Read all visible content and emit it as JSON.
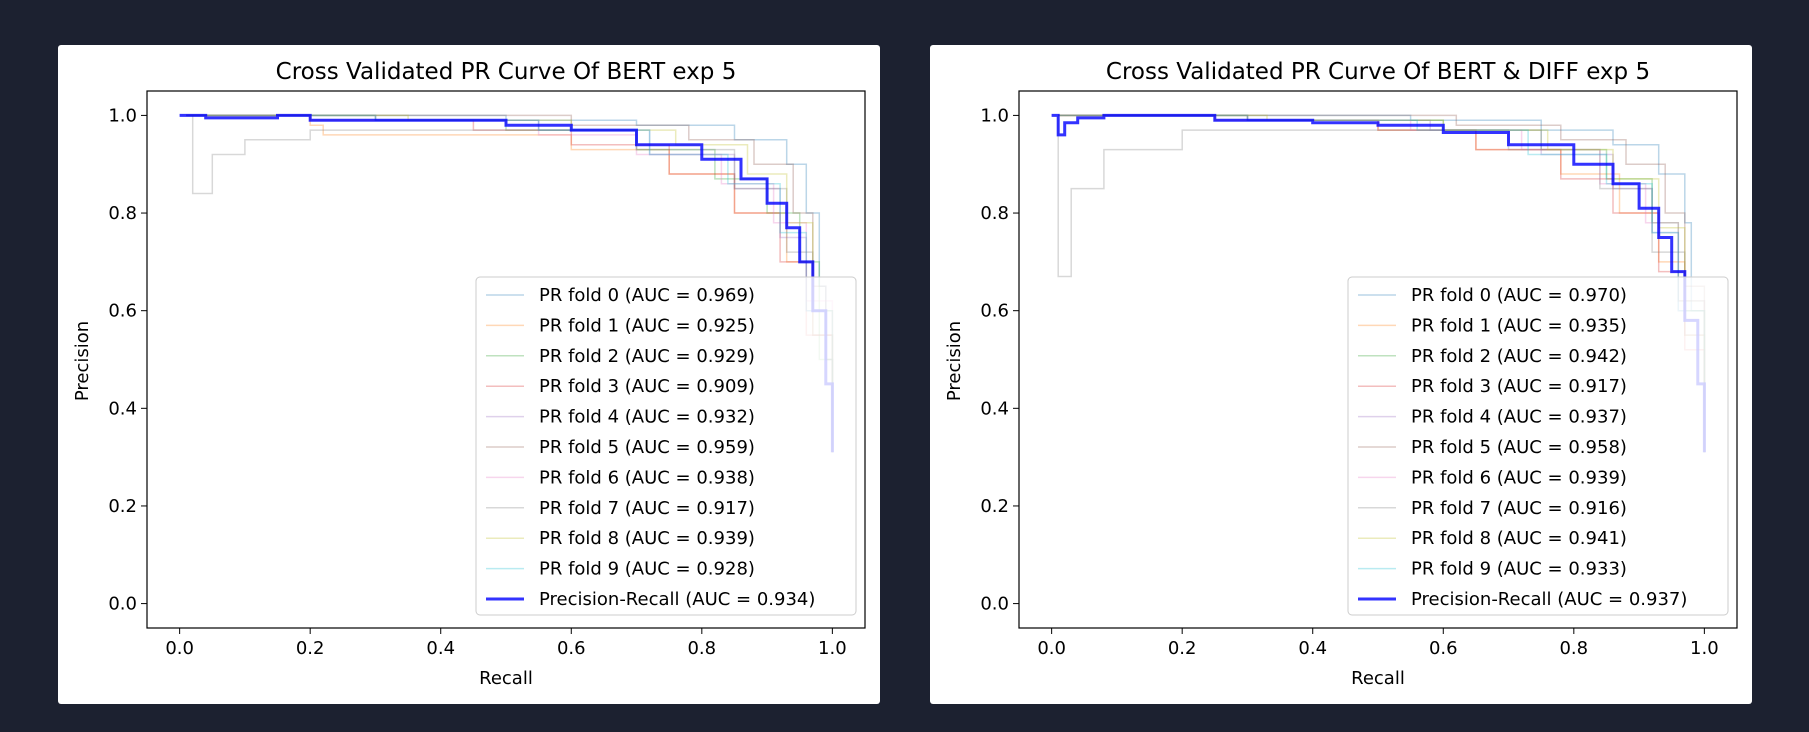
{
  "chart_data": [
    {
      "type": "line",
      "title": "Cross Validated PR Curve Of BERT exp 5",
      "xlabel": "Recall",
      "ylabel": "Precision",
      "xlim": [
        -0.05,
        1.05
      ],
      "ylim": [
        -0.05,
        1.05
      ],
      "xticks": [
        "0.0",
        "0.2",
        "0.4",
        "0.6",
        "0.8",
        "1.0"
      ],
      "yticks": [
        "0.0",
        "0.2",
        "0.4",
        "0.6",
        "0.8",
        "1.0"
      ],
      "legend_position": "lower-right",
      "grid": false,
      "series": [
        {
          "name": "PR fold 0 (AUC = 0.969)",
          "color": "#1f77b4",
          "points": [
            [
              0.01,
              1.0
            ],
            [
              0.2,
              1.0
            ],
            [
              0.5,
              0.99
            ],
            [
              0.7,
              0.98
            ],
            [
              0.85,
              0.95
            ],
            [
              0.93,
              0.9
            ],
            [
              0.96,
              0.8
            ],
            [
              0.98,
              0.65
            ],
            [
              0.99,
              0.5
            ],
            [
              1.0,
              0.31
            ]
          ]
        },
        {
          "name": "PR fold 1 (AUC = 0.925)",
          "color": "#ff7f0e",
          "points": [
            [
              0.01,
              1.0
            ],
            [
              0.2,
              0.98
            ],
            [
              0.22,
              0.96
            ],
            [
              0.5,
              0.96
            ],
            [
              0.6,
              0.93
            ],
            [
              0.75,
              0.88
            ],
            [
              0.85,
              0.8
            ],
            [
              0.93,
              0.7
            ],
            [
              0.97,
              0.55
            ],
            [
              1.0,
              0.31
            ]
          ]
        },
        {
          "name": "PR fold 2 (AUC = 0.929)",
          "color": "#2ca02c",
          "points": [
            [
              0.01,
              1.0
            ],
            [
              0.3,
              0.99
            ],
            [
              0.5,
              0.97
            ],
            [
              0.7,
              0.93
            ],
            [
              0.82,
              0.87
            ],
            [
              0.9,
              0.8
            ],
            [
              0.95,
              0.7
            ],
            [
              0.98,
              0.5
            ],
            [
              1.0,
              0.31
            ]
          ]
        },
        {
          "name": "PR fold 3 (AUC = 0.909)",
          "color": "#d62728",
          "points": [
            [
              0.01,
              1.0
            ],
            [
              0.2,
              0.99
            ],
            [
              0.45,
              0.97
            ],
            [
              0.6,
              0.94
            ],
            [
              0.75,
              0.88
            ],
            [
              0.85,
              0.8
            ],
            [
              0.92,
              0.7
            ],
            [
              0.96,
              0.55
            ],
            [
              1.0,
              0.31
            ]
          ]
        },
        {
          "name": "PR fold 4 (AUC = 0.932)",
          "color": "#9467bd",
          "points": [
            [
              0.01,
              1.0
            ],
            [
              0.3,
              0.99
            ],
            [
              0.55,
              0.97
            ],
            [
              0.72,
              0.92
            ],
            [
              0.85,
              0.85
            ],
            [
              0.92,
              0.75
            ],
            [
              0.96,
              0.6
            ],
            [
              1.0,
              0.31
            ]
          ]
        },
        {
          "name": "PR fold 5 (AUC = 0.959)",
          "color": "#8c564b",
          "points": [
            [
              0.01,
              1.0
            ],
            [
              0.3,
              1.0
            ],
            [
              0.6,
              0.98
            ],
            [
              0.78,
              0.95
            ],
            [
              0.88,
              0.9
            ],
            [
              0.94,
              0.8
            ],
            [
              0.97,
              0.65
            ],
            [
              0.99,
              0.5
            ],
            [
              1.0,
              0.31
            ]
          ]
        },
        {
          "name": "PR fold 6 (AUC = 0.938)",
          "color": "#e377c2",
          "points": [
            [
              0.01,
              1.0
            ],
            [
              0.3,
              0.99
            ],
            [
              0.55,
              0.96
            ],
            [
              0.7,
              0.92
            ],
            [
              0.83,
              0.86
            ],
            [
              0.91,
              0.78
            ],
            [
              0.96,
              0.62
            ],
            [
              1.0,
              0.31
            ]
          ]
        },
        {
          "name": "PR fold 7 (AUC = 0.917)",
          "color": "#7f7f7f",
          "points": [
            [
              0.02,
              1.0
            ],
            [
              0.02,
              0.84
            ],
            [
              0.05,
              0.92
            ],
            [
              0.1,
              0.95
            ],
            [
              0.2,
              0.97
            ],
            [
              0.5,
              0.97
            ],
            [
              0.7,
              0.93
            ],
            [
              0.85,
              0.85
            ],
            [
              0.93,
              0.72
            ],
            [
              0.97,
              0.55
            ],
            [
              1.0,
              0.31
            ]
          ]
        },
        {
          "name": "PR fold 8 (AUC = 0.939)",
          "color": "#bcbd22",
          "points": [
            [
              0.01,
              1.0
            ],
            [
              0.35,
              0.99
            ],
            [
              0.6,
              0.97
            ],
            [
              0.76,
              0.94
            ],
            [
              0.87,
              0.88
            ],
            [
              0.93,
              0.78
            ],
            [
              0.97,
              0.6
            ],
            [
              1.0,
              0.31
            ]
          ]
        },
        {
          "name": "PR fold 9 (AUC = 0.928)",
          "color": "#17becf",
          "points": [
            [
              0.01,
              1.0
            ],
            [
              0.3,
              0.99
            ],
            [
              0.55,
              0.97
            ],
            [
              0.72,
              0.92
            ],
            [
              0.84,
              0.86
            ],
            [
              0.92,
              0.76
            ],
            [
              0.96,
              0.6
            ],
            [
              1.0,
              0.31
            ]
          ]
        },
        {
          "name": "Precision-Recall (AUC = 0.934)",
          "color": "#0000ff",
          "points": [
            [
              0.0,
              1.0
            ],
            [
              0.03,
              1.0
            ],
            [
              0.04,
              0.995
            ],
            [
              0.15,
              1.0
            ],
            [
              0.2,
              0.99
            ],
            [
              0.4,
              0.99
            ],
            [
              0.5,
              0.98
            ],
            [
              0.6,
              0.97
            ],
            [
              0.7,
              0.94
            ],
            [
              0.8,
              0.91
            ],
            [
              0.86,
              0.87
            ],
            [
              0.9,
              0.82
            ],
            [
              0.93,
              0.77
            ],
            [
              0.95,
              0.7
            ],
            [
              0.97,
              0.6
            ],
            [
              0.99,
              0.45
            ],
            [
              1.0,
              0.31
            ]
          ]
        }
      ]
    },
    {
      "type": "line",
      "title": "Cross Validated PR Curve Of BERT & DIFF exp 5",
      "xlabel": "Recall",
      "ylabel": "Precision",
      "xlim": [
        -0.05,
        1.05
      ],
      "ylim": [
        -0.05,
        1.05
      ],
      "xticks": [
        "0.0",
        "0.2",
        "0.4",
        "0.6",
        "0.8",
        "1.0"
      ],
      "yticks": [
        "0.0",
        "0.2",
        "0.4",
        "0.6",
        "0.8",
        "1.0"
      ],
      "legend_position": "lower-right",
      "grid": false,
      "series": [
        {
          "name": "PR fold 0 (AUC = 0.970)",
          "color": "#1f77b4",
          "points": [
            [
              0.01,
              1.0
            ],
            [
              0.3,
              1.0
            ],
            [
              0.55,
              0.99
            ],
            [
              0.75,
              0.97
            ],
            [
              0.86,
              0.94
            ],
            [
              0.93,
              0.88
            ],
            [
              0.97,
              0.78
            ],
            [
              0.98,
              0.6
            ],
            [
              1.0,
              0.31
            ]
          ]
        },
        {
          "name": "PR fold 1 (AUC = 0.935)",
          "color": "#ff7f0e",
          "points": [
            [
              0.01,
              1.0
            ],
            [
              0.3,
              0.99
            ],
            [
              0.5,
              0.97
            ],
            [
              0.65,
              0.93
            ],
            [
              0.78,
              0.88
            ],
            [
              0.87,
              0.8
            ],
            [
              0.93,
              0.7
            ],
            [
              0.97,
              0.55
            ],
            [
              1.0,
              0.31
            ]
          ]
        },
        {
          "name": "PR fold 2 (AUC = 0.942)",
          "color": "#2ca02c",
          "points": [
            [
              0.01,
              1.0
            ],
            [
              0.3,
              0.99
            ],
            [
              0.6,
              0.97
            ],
            [
              0.75,
              0.93
            ],
            [
              0.85,
              0.87
            ],
            [
              0.92,
              0.78
            ],
            [
              0.96,
              0.62
            ],
            [
              1.0,
              0.31
            ]
          ]
        },
        {
          "name": "PR fold 3 (AUC = 0.917)",
          "color": "#d62728",
          "points": [
            [
              0.01,
              1.0
            ],
            [
              0.25,
              0.99
            ],
            [
              0.5,
              0.97
            ],
            [
              0.65,
              0.93
            ],
            [
              0.78,
              0.87
            ],
            [
              0.86,
              0.8
            ],
            [
              0.93,
              0.68
            ],
            [
              0.97,
              0.52
            ],
            [
              1.0,
              0.31
            ]
          ]
        },
        {
          "name": "PR fold 4 (AUC = 0.937)",
          "color": "#9467bd",
          "points": [
            [
              0.01,
              1.0
            ],
            [
              0.3,
              0.99
            ],
            [
              0.58,
              0.97
            ],
            [
              0.75,
              0.92
            ],
            [
              0.86,
              0.85
            ],
            [
              0.92,
              0.76
            ],
            [
              0.96,
              0.6
            ],
            [
              1.0,
              0.31
            ]
          ]
        },
        {
          "name": "PR fold 5 (AUC = 0.958)",
          "color": "#8c564b",
          "points": [
            [
              0.01,
              1.0
            ],
            [
              0.35,
              1.0
            ],
            [
              0.62,
              0.98
            ],
            [
              0.78,
              0.95
            ],
            [
              0.88,
              0.9
            ],
            [
              0.94,
              0.8
            ],
            [
              0.97,
              0.65
            ],
            [
              1.0,
              0.31
            ]
          ]
        },
        {
          "name": "PR fold 6 (AUC = 0.939)",
          "color": "#e377c2",
          "points": [
            [
              0.01,
              1.0
            ],
            [
              0.3,
              0.99
            ],
            [
              0.55,
              0.97
            ],
            [
              0.72,
              0.93
            ],
            [
              0.84,
              0.86
            ],
            [
              0.91,
              0.78
            ],
            [
              0.96,
              0.62
            ],
            [
              1.0,
              0.31
            ]
          ]
        },
        {
          "name": "PR fold 7 (AUC = 0.916)",
          "color": "#7f7f7f",
          "points": [
            [
              0.01,
              1.0
            ],
            [
              0.01,
              0.67
            ],
            [
              0.03,
              0.85
            ],
            [
              0.08,
              0.93
            ],
            [
              0.2,
              0.97
            ],
            [
              0.5,
              0.97
            ],
            [
              0.7,
              0.93
            ],
            [
              0.84,
              0.85
            ],
            [
              0.92,
              0.72
            ],
            [
              0.97,
              0.55
            ],
            [
              1.0,
              0.31
            ]
          ]
        },
        {
          "name": "PR fold 8 (AUC = 0.941)",
          "color": "#bcbd22",
          "points": [
            [
              0.01,
              1.0
            ],
            [
              0.33,
              0.99
            ],
            [
              0.6,
              0.97
            ],
            [
              0.76,
              0.93
            ],
            [
              0.86,
              0.87
            ],
            [
              0.93,
              0.77
            ],
            [
              0.97,
              0.6
            ],
            [
              1.0,
              0.31
            ]
          ]
        },
        {
          "name": "PR fold 9 (AUC = 0.933)",
          "color": "#17becf",
          "points": [
            [
              0.01,
              1.0
            ],
            [
              0.3,
              0.99
            ],
            [
              0.56,
              0.97
            ],
            [
              0.73,
              0.92
            ],
            [
              0.85,
              0.86
            ],
            [
              0.92,
              0.76
            ],
            [
              0.96,
              0.6
            ],
            [
              1.0,
              0.31
            ]
          ]
        },
        {
          "name": "Precision-Recall (AUC = 0.937)",
          "color": "#0000ff",
          "points": [
            [
              0.0,
              1.0
            ],
            [
              0.01,
              1.0
            ],
            [
              0.01,
              0.96
            ],
            [
              0.02,
              0.985
            ],
            [
              0.04,
              0.995
            ],
            [
              0.08,
              1.0
            ],
            [
              0.2,
              1.0
            ],
            [
              0.25,
              0.99
            ],
            [
              0.4,
              0.985
            ],
            [
              0.5,
              0.98
            ],
            [
              0.6,
              0.965
            ],
            [
              0.7,
              0.94
            ],
            [
              0.8,
              0.9
            ],
            [
              0.86,
              0.86
            ],
            [
              0.9,
              0.81
            ],
            [
              0.93,
              0.75
            ],
            [
              0.95,
              0.68
            ],
            [
              0.97,
              0.58
            ],
            [
              0.99,
              0.45
            ],
            [
              1.0,
              0.31
            ]
          ]
        }
      ]
    }
  ]
}
